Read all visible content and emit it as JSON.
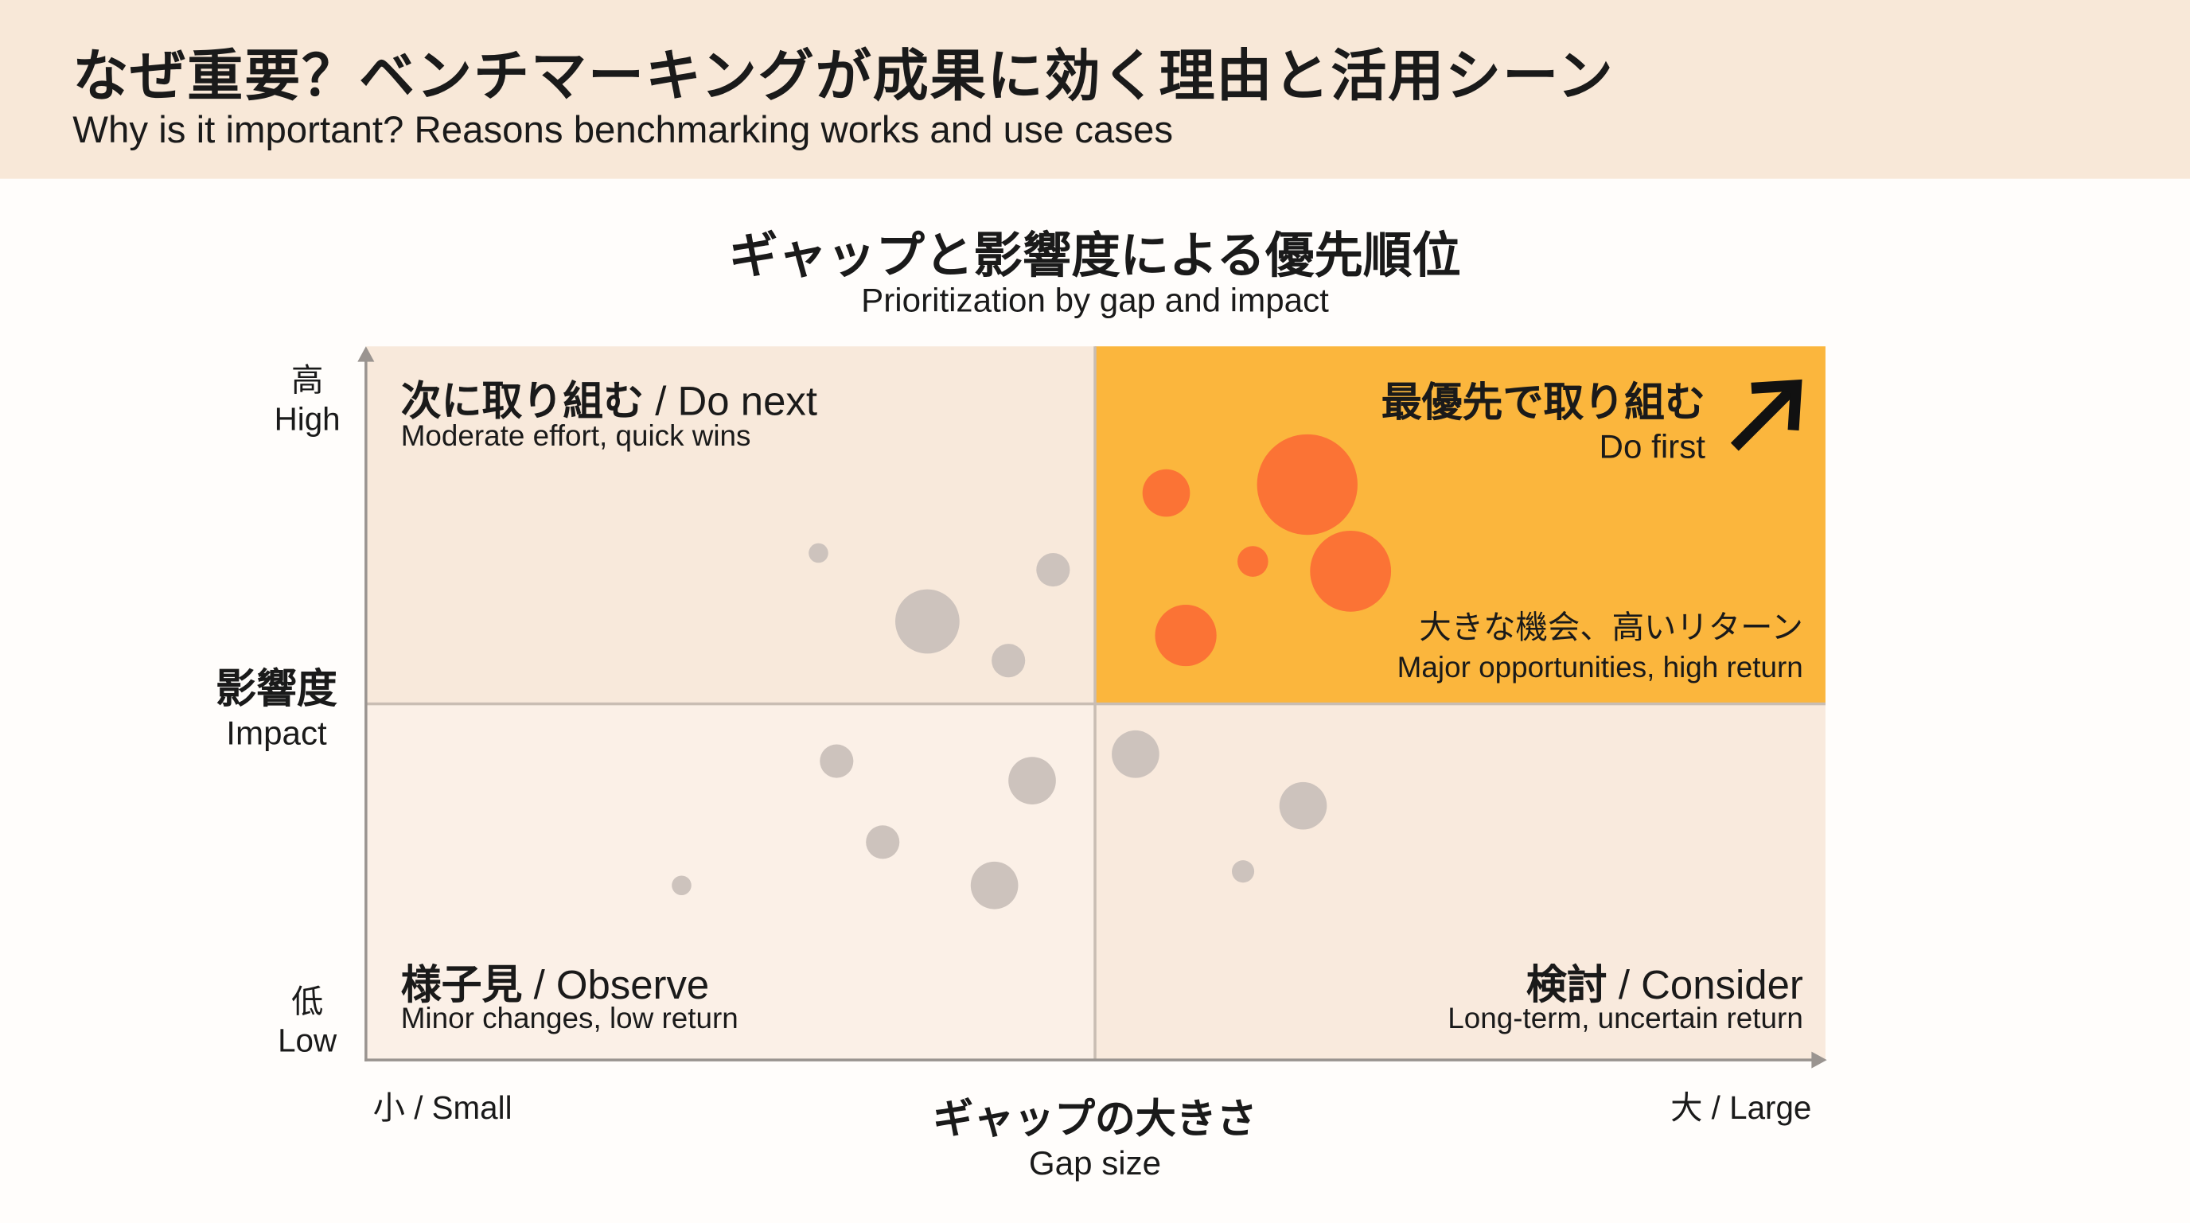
{
  "header": {
    "title": "なぜ重要？ベンチマーキングが成果に効く理由と活用シーン",
    "subtitle": "Why is it important? Reasons benchmarking works and use cases"
  },
  "chart": {
    "title_ja": "ギャップと影響度による優先順位",
    "title_en": "Prioritization by gap and impact",
    "y_axis": {
      "label_ja": "影響度",
      "label_en": "Impact",
      "high_ja": "高",
      "high_en": "High",
      "low_ja": "低",
      "low_en": "Low"
    },
    "x_axis": {
      "label_ja": "ギャップの大きさ",
      "label_en": "Gap size",
      "small": "小 / Small",
      "large": "大 / Large"
    },
    "quadrants": {
      "do_next": {
        "title_ja": "次に取り組む",
        "title_en": " / Do next",
        "desc": "Moderate effort, quick wins"
      },
      "do_first": {
        "title_ja": "最優先で取り組む",
        "title_en": "Do first",
        "desc_ja": "大きな機会、高いリターン",
        "desc_en": "Major opportunities, high return",
        "icon": "arrow-up-right-icon"
      },
      "observe": {
        "title_ja": "様子見",
        "title_en": " / Observe",
        "desc": "Minor changes, low return"
      },
      "consider": {
        "title_ja": "検討",
        "title_en": " / Consider",
        "desc": "Long-term, uncertain return"
      }
    }
  },
  "colors": {
    "header_bg": "#f8e8d8",
    "do_first_bg": "#fbb63d",
    "highlight_bubble": "#fb7335",
    "muted_bubble": "#cdc3bd"
  }
}
